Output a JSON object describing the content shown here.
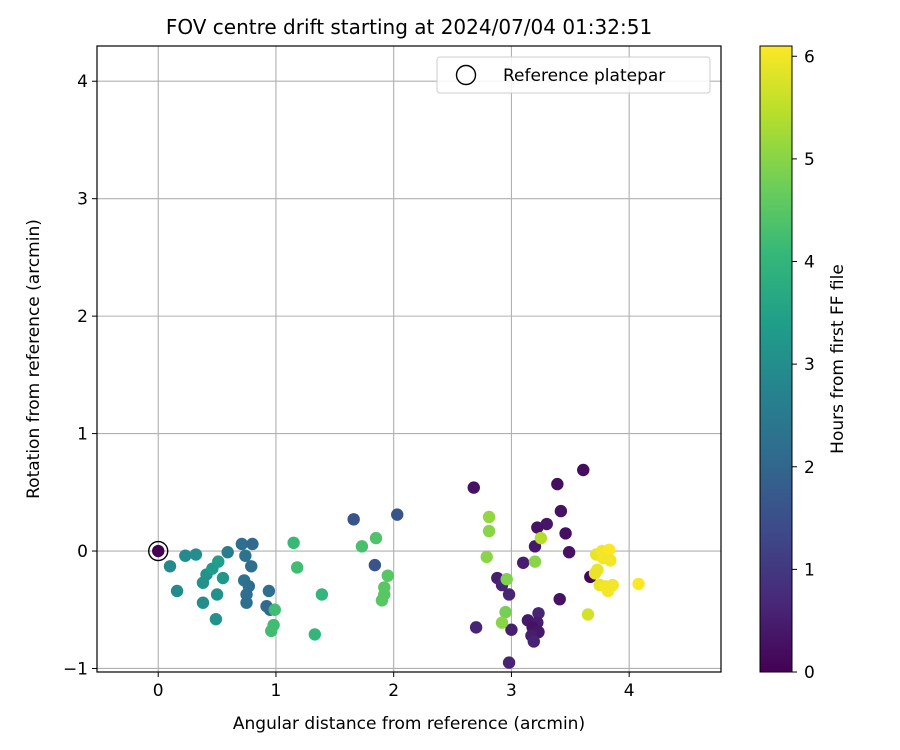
{
  "chart_data": {
    "type": "scatter",
    "title": "FOV centre drift starting at 2024/07/04 01:32:51",
    "xlabel": "Angular distance from reference (arcmin)",
    "ylabel": "Rotation from reference (arcmin)",
    "xlim": [
      -0.52,
      4.78
    ],
    "ylim": [
      -1.03,
      4.3
    ],
    "xticks": [
      0,
      1,
      2,
      3,
      4
    ],
    "yticks": [
      -1,
      0,
      1,
      2,
      3,
      4
    ],
    "grid": true,
    "legend": {
      "placement": "top-right",
      "entries": [
        "Reference platepar"
      ]
    },
    "reference_point": {
      "x": 0,
      "y": 0,
      "hours": 0
    },
    "colorbar": {
      "label": "Hours from first FF file",
      "colormap": "viridis",
      "range": [
        0,
        6.1
      ],
      "ticks": [
        0,
        1,
        2,
        3,
        4,
        5,
        6
      ]
    },
    "colormap_stops": [
      "#440154",
      "#482878",
      "#3e4989",
      "#31688e",
      "#26828e",
      "#1f9e89",
      "#35b779",
      "#6ece58",
      "#b5de2b",
      "#fde725"
    ],
    "points": [
      {
        "x": 3.61,
        "y": 0.69,
        "hours": 0.2
      },
      {
        "x": 3.39,
        "y": 0.57,
        "hours": 0.25
      },
      {
        "x": 2.68,
        "y": 0.54,
        "hours": 0.3
      },
      {
        "x": 3.42,
        "y": 0.34,
        "hours": 0.3
      },
      {
        "x": 3.3,
        "y": 0.23,
        "hours": 0.35
      },
      {
        "x": 3.22,
        "y": 0.2,
        "hours": 0.3
      },
      {
        "x": 3.46,
        "y": 0.15,
        "hours": 0.25
      },
      {
        "x": 3.2,
        "y": 0.04,
        "hours": 0.4
      },
      {
        "x": 3.49,
        "y": -0.01,
        "hours": 0.3
      },
      {
        "x": 3.1,
        "y": -0.1,
        "hours": 0.5
      },
      {
        "x": 3.67,
        "y": -0.22,
        "hours": 0.1
      },
      {
        "x": 2.88,
        "y": -0.23,
        "hours": 0.5
      },
      {
        "x": 2.92,
        "y": -0.29,
        "hours": 0.6
      },
      {
        "x": 2.98,
        "y": -0.37,
        "hours": 0.6
      },
      {
        "x": 3.41,
        "y": -0.41,
        "hours": 0.3
      },
      {
        "x": 3.23,
        "y": -0.53,
        "hours": 0.6
      },
      {
        "x": 3.14,
        "y": -0.59,
        "hours": 0.4
      },
      {
        "x": 3.22,
        "y": -0.61,
        "hours": 0.5
      },
      {
        "x": 2.7,
        "y": -0.65,
        "hours": 0.6
      },
      {
        "x": 3.0,
        "y": -0.67,
        "hours": 0.5
      },
      {
        "x": 3.18,
        "y": -0.65,
        "hours": 0.3
      },
      {
        "x": 3.23,
        "y": -0.69,
        "hours": 0.4
      },
      {
        "x": 3.17,
        "y": -0.72,
        "hours": 0.5
      },
      {
        "x": 3.19,
        "y": -0.77,
        "hours": 0.6
      },
      {
        "x": 2.98,
        "y": -0.95,
        "hours": 0.6
      },
      {
        "x": 2.03,
        "y": 0.31,
        "hours": 1.6
      },
      {
        "x": 1.66,
        "y": 0.27,
        "hours": 1.6
      },
      {
        "x": 1.84,
        "y": -0.12,
        "hours": 1.6
      },
      {
        "x": 0.71,
        "y": 0.06,
        "hours": 2.2
      },
      {
        "x": 0.8,
        "y": 0.06,
        "hours": 2.1
      },
      {
        "x": 0.59,
        "y": -0.01,
        "hours": 2.6
      },
      {
        "x": 0.74,
        "y": -0.04,
        "hours": 2.3
      },
      {
        "x": 0.79,
        "y": -0.13,
        "hours": 2.2
      },
      {
        "x": 0.73,
        "y": -0.25,
        "hours": 2.3
      },
      {
        "x": 0.77,
        "y": -0.3,
        "hours": 2.2
      },
      {
        "x": 0.94,
        "y": -0.34,
        "hours": 2.2
      },
      {
        "x": 0.75,
        "y": -0.37,
        "hours": 2.2
      },
      {
        "x": 0.75,
        "y": -0.44,
        "hours": 2.2
      },
      {
        "x": 0.92,
        "y": -0.47,
        "hours": 2.1
      },
      {
        "x": 0.95,
        "y": -0.5,
        "hours": 2.1
      },
      {
        "x": 0.1,
        "y": -0.13,
        "hours": 2.9
      },
      {
        "x": 0.23,
        "y": -0.04,
        "hours": 2.9
      },
      {
        "x": 0.32,
        "y": -0.03,
        "hours": 3.0
      },
      {
        "x": 0.16,
        "y": -0.34,
        "hours": 2.9
      },
      {
        "x": 0.41,
        "y": -0.2,
        "hours": 3.1
      },
      {
        "x": 0.38,
        "y": -0.27,
        "hours": 3.1
      },
      {
        "x": 0.46,
        "y": -0.15,
        "hours": 3.3
      },
      {
        "x": 0.51,
        "y": -0.09,
        "hours": 3.4
      },
      {
        "x": 0.55,
        "y": -0.23,
        "hours": 3.2
      },
      {
        "x": 0.5,
        "y": -0.37,
        "hours": 3.1
      },
      {
        "x": 0.38,
        "y": -0.44,
        "hours": 3.0
      },
      {
        "x": 0.49,
        "y": -0.58,
        "hours": 3.1
      },
      {
        "x": 1.15,
        "y": 0.07,
        "hours": 4.1
      },
      {
        "x": 1.73,
        "y": 0.04,
        "hours": 4.3
      },
      {
        "x": 1.85,
        "y": 0.11,
        "hours": 4.4
      },
      {
        "x": 1.18,
        "y": -0.14,
        "hours": 4.2
      },
      {
        "x": 0.99,
        "y": -0.5,
        "hours": 4.2
      },
      {
        "x": 0.98,
        "y": -0.63,
        "hours": 4.2
      },
      {
        "x": 0.96,
        "y": -0.68,
        "hours": 4.2
      },
      {
        "x": 1.39,
        "y": -0.37,
        "hours": 4.0
      },
      {
        "x": 1.33,
        "y": -0.71,
        "hours": 4.0
      },
      {
        "x": 1.95,
        "y": -0.21,
        "hours": 4.5
      },
      {
        "x": 1.92,
        "y": -0.31,
        "hours": 4.5
      },
      {
        "x": 1.92,
        "y": -0.37,
        "hours": 4.5
      },
      {
        "x": 1.9,
        "y": -0.42,
        "hours": 4.5
      },
      {
        "x": 2.81,
        "y": 0.29,
        "hours": 5.1
      },
      {
        "x": 2.81,
        "y": 0.17,
        "hours": 5.0
      },
      {
        "x": 3.25,
        "y": 0.11,
        "hours": 5.4
      },
      {
        "x": 2.79,
        "y": -0.05,
        "hours": 5.0
      },
      {
        "x": 3.2,
        "y": -0.09,
        "hours": 5.0
      },
      {
        "x": 2.96,
        "y": -0.24,
        "hours": 4.9
      },
      {
        "x": 2.95,
        "y": -0.52,
        "hours": 4.8
      },
      {
        "x": 2.92,
        "y": -0.61,
        "hours": 5.0
      },
      {
        "x": 3.72,
        "y": -0.03,
        "hours": 5.9
      },
      {
        "x": 3.77,
        "y": 0.0,
        "hours": 6.0
      },
      {
        "x": 3.83,
        "y": 0.01,
        "hours": 6.1
      },
      {
        "x": 3.78,
        "y": -0.06,
        "hours": 6.0
      },
      {
        "x": 3.84,
        "y": -0.08,
        "hours": 6.0
      },
      {
        "x": 3.73,
        "y": -0.16,
        "hours": 5.9
      },
      {
        "x": 3.71,
        "y": -0.19,
        "hours": 5.9
      },
      {
        "x": 3.75,
        "y": -0.29,
        "hours": 5.9
      },
      {
        "x": 3.86,
        "y": -0.29,
        "hours": 6.0
      },
      {
        "x": 3.8,
        "y": -0.3,
        "hours": 6.0
      },
      {
        "x": 3.82,
        "y": -0.34,
        "hours": 6.0
      },
      {
        "x": 4.08,
        "y": -0.28,
        "hours": 6.1
      },
      {
        "x": 3.65,
        "y": -0.54,
        "hours": 5.7
      },
      {
        "x": 0.0,
        "y": 0.0,
        "hours": 0.0
      }
    ]
  }
}
